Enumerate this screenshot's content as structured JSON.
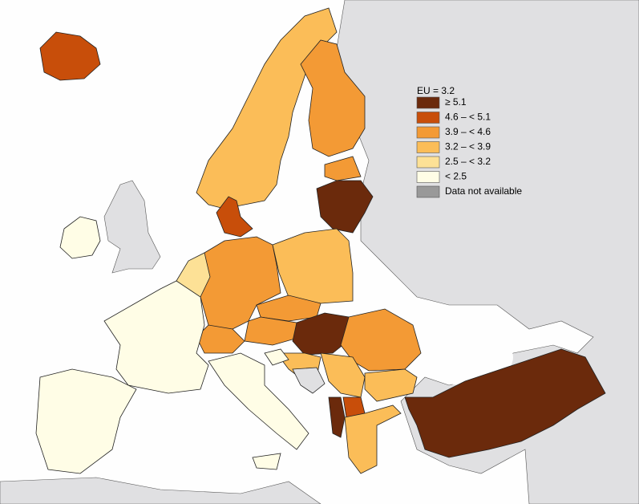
{
  "legend": {
    "title": "EU = 3.2",
    "items": [
      {
        "label": "≥ 5.1",
        "color": "#6b2a0c"
      },
      {
        "label": "4.6 – < 5.1",
        "color": "#c84e0a"
      },
      {
        "label": "3.9 – < 4.6",
        "color": "#f39a35"
      },
      {
        "label": "3.2 – < 3.9",
        "color": "#fbbd58"
      },
      {
        "label": "2.5 – < 3.2",
        "color": "#fde196"
      },
      {
        "label": "< 2.5",
        "color": "#fffde6"
      },
      {
        "label": "Data not available",
        "color": "#999999"
      }
    ]
  }
}
